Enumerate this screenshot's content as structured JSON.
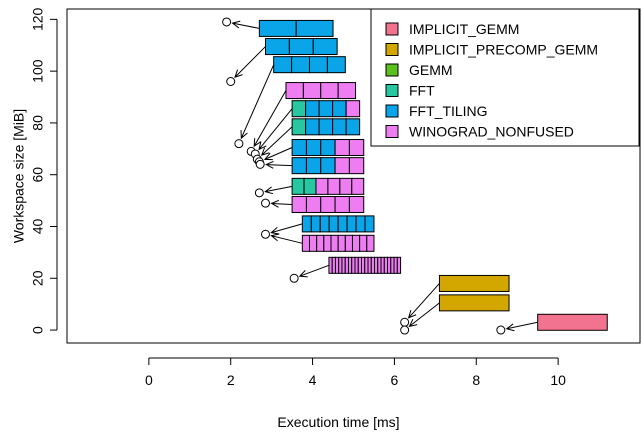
{
  "chart_data": {
    "type": "scatter",
    "title": "",
    "xlabel": "Execution time [ms]",
    "ylabel": "Workspace size [MiB]",
    "xlim": [
      -2,
      12
    ],
    "ylim": [
      -5,
      124
    ],
    "xticks": [
      0,
      2,
      4,
      6,
      8,
      10
    ],
    "yticks": [
      0,
      20,
      40,
      60,
      80,
      100,
      120
    ],
    "grid": false,
    "legend_position": "top-right",
    "legend": [
      {
        "label": "IMPLICIT_GEMM",
        "color": "#f1738f"
      },
      {
        "label": "IMPLICIT_PRECOMP_GEMM",
        "color": "#d4a600"
      },
      {
        "label": "GEMM",
        "color": "#5bc11f"
      },
      {
        "label": "FFT",
        "color": "#27c8a1"
      },
      {
        "label": "FFT_TILING",
        "color": "#0aa5e8"
      },
      {
        "label": "WINOGRAD_NONFUSED",
        "color": "#ef7df2"
      }
    ],
    "points": [
      {
        "x": 1.9,
        "y": 119
      },
      {
        "x": 2.0,
        "y": 96
      },
      {
        "x": 2.2,
        "y": 72
      },
      {
        "x": 2.5,
        "y": 69
      },
      {
        "x": 2.6,
        "y": 68
      },
      {
        "x": 2.65,
        "y": 66
      },
      {
        "x": 2.7,
        "y": 65
      },
      {
        "x": 2.72,
        "y": 64
      },
      {
        "x": 2.7,
        "y": 53
      },
      {
        "x": 2.85,
        "y": 49
      },
      {
        "x": 2.85,
        "y": 37
      },
      {
        "x": 3.55,
        "y": 20
      },
      {
        "x": 6.25,
        "y": 3
      },
      {
        "x": 6.25,
        "y": 0
      },
      {
        "x": 8.6,
        "y": 0
      }
    ],
    "configs": [
      {
        "y": 116.5,
        "x0": 2.7,
        "x1": 4.5,
        "segments": [
          {
            "algo": "FFT_TILING",
            "n": 2
          }
        ]
      },
      {
        "y": 109.5,
        "x0": 2.85,
        "x1": 4.6,
        "segments": [
          {
            "algo": "FFT_TILING",
            "n": 3
          }
        ]
      },
      {
        "y": 102.5,
        "x0": 3.05,
        "x1": 4.8,
        "segments": [
          {
            "algo": "FFT_TILING",
            "n": 4
          }
        ]
      },
      {
        "y": 92.5,
        "x0": 3.35,
        "x1": 5.05,
        "segments": [
          {
            "algo": "WINOGRAD_NONFUSED",
            "n": 4
          }
        ]
      },
      {
        "y": 85.5,
        "x0": 3.5,
        "x1": 5.15,
        "segments": [
          {
            "algo": "FFT",
            "n": 1
          },
          {
            "algo": "FFT_TILING",
            "n": 3
          },
          {
            "algo": "WINOGRAD_NONFUSED",
            "n": 1
          }
        ]
      },
      {
        "y": 78.5,
        "x0": 3.5,
        "x1": 5.15,
        "segments": [
          {
            "algo": "FFT",
            "n": 1
          },
          {
            "algo": "FFT_TILING",
            "n": 4
          }
        ]
      },
      {
        "y": 70.5,
        "x0": 3.5,
        "x1": 5.25,
        "segments": [
          {
            "algo": "FFT_TILING",
            "n": 3
          },
          {
            "algo": "WINOGRAD_NONFUSED",
            "n": 2
          }
        ]
      },
      {
        "y": 63.5,
        "x0": 3.5,
        "x1": 5.25,
        "segments": [
          {
            "algo": "FFT_TILING",
            "n": 3
          },
          {
            "algo": "WINOGRAD_NONFUSED",
            "n": 2
          }
        ]
      },
      {
        "y": 55.5,
        "x0": 3.5,
        "x1": 5.25,
        "segments": [
          {
            "algo": "FFT",
            "n": 2
          },
          {
            "algo": "WINOGRAD_NONFUSED",
            "n": 4
          }
        ]
      },
      {
        "y": 48.5,
        "x0": 3.5,
        "x1": 5.25,
        "segments": [
          {
            "algo": "WINOGRAD_NONFUSED",
            "n": 5
          }
        ]
      },
      {
        "y": 41,
        "x0": 3.75,
        "x1": 5.5,
        "segments": [
          {
            "algo": "FFT_TILING",
            "n": 8
          }
        ]
      },
      {
        "y": 33.5,
        "x0": 3.75,
        "x1": 5.5,
        "segments": [
          {
            "algo": "WINOGRAD_NONFUSED",
            "n": 10
          }
        ]
      },
      {
        "y": 25,
        "x0": 4.4,
        "x1": 6.15,
        "segments": [
          {
            "algo": "WINOGRAD_NONFUSED",
            "n": 22
          }
        ]
      },
      {
        "y": 18,
        "x0": 7.1,
        "x1": 8.8,
        "segments": [
          {
            "algo": "IMPLICIT_PRECOMP_GEMM",
            "n": 1
          }
        ]
      },
      {
        "y": 10.5,
        "x0": 7.1,
        "x1": 8.8,
        "segments": [
          {
            "algo": "IMPLICIT_PRECOMP_GEMM",
            "n": 1
          }
        ]
      },
      {
        "y": 3,
        "x0": 9.5,
        "x1": 11.2,
        "segments": [
          {
            "algo": "IMPLICIT_GEMM",
            "n": 1
          }
        ]
      }
    ],
    "arrows": [
      {
        "from": [
          2.7,
          116.5
        ],
        "to": [
          1.9,
          119
        ]
      },
      {
        "from": [
          2.85,
          109.5
        ],
        "to": [
          2.0,
          96
        ]
      },
      {
        "from": [
          3.05,
          102.5
        ],
        "to": [
          2.2,
          72
        ]
      },
      {
        "from": [
          3.35,
          92.5
        ],
        "to": [
          2.5,
          69
        ]
      },
      {
        "from": [
          3.5,
          85.5
        ],
        "to": [
          2.6,
          68
        ]
      },
      {
        "from": [
          3.5,
          78.5
        ],
        "to": [
          2.65,
          66
        ]
      },
      {
        "from": [
          3.5,
          70.5
        ],
        "to": [
          2.7,
          65
        ]
      },
      {
        "from": [
          3.5,
          63.5
        ],
        "to": [
          2.72,
          64
        ]
      },
      {
        "from": [
          3.5,
          55.5
        ],
        "to": [
          2.7,
          53
        ]
      },
      {
        "from": [
          3.5,
          48.5
        ],
        "to": [
          2.85,
          49
        ]
      },
      {
        "from": [
          3.75,
          41
        ],
        "to": [
          2.85,
          37
        ]
      },
      {
        "from": [
          3.75,
          33.5
        ],
        "to": [
          2.85,
          37
        ]
      },
      {
        "from": [
          4.4,
          25
        ],
        "to": [
          3.55,
          20
        ]
      },
      {
        "from": [
          7.1,
          18
        ],
        "to": [
          6.25,
          3
        ]
      },
      {
        "from": [
          7.1,
          10.5
        ],
        "to": [
          6.25,
          0
        ]
      },
      {
        "from": [
          9.5,
          3
        ],
        "to": [
          8.6,
          0
        ]
      }
    ]
  }
}
